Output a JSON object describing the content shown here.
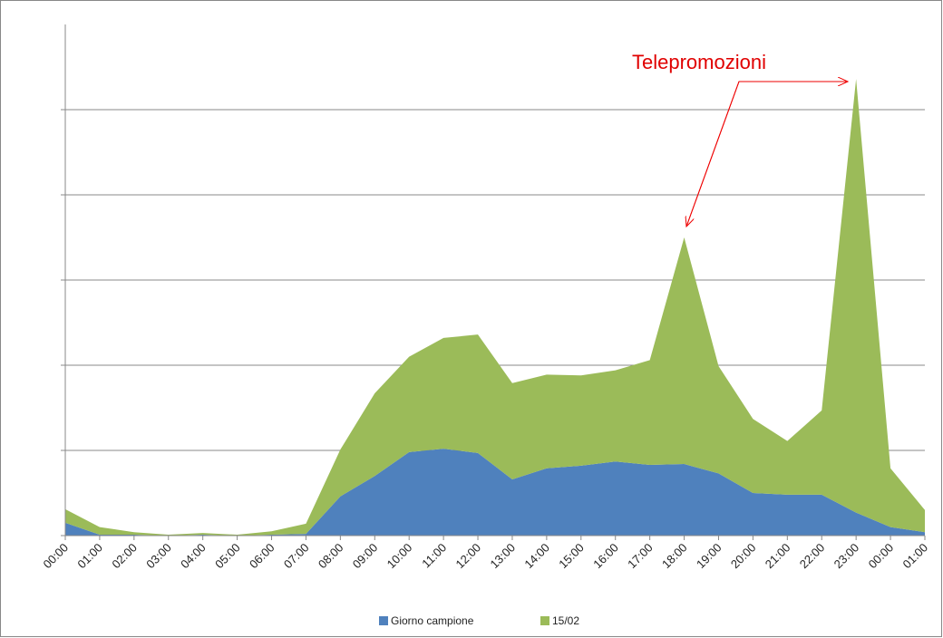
{
  "chart_data": {
    "type": "stacked_area",
    "annotations": [
      "Telepromozioni"
    ],
    "categories": [
      "00:00",
      "01:00",
      "02:00",
      "03:00",
      "04:00",
      "05:00",
      "06:00",
      "07:00",
      "08:00",
      "09:00",
      "10:00",
      "11:00",
      "12:00",
      "13:00",
      "14:00",
      "15:00",
      "16:00",
      "17:00",
      "18:00",
      "19:00",
      "20:00",
      "21:00",
      "22:00",
      "23:00",
      "00:00",
      "01:00"
    ],
    "series": [
      {
        "name": "Giorno campione",
        "color": "#4f81bd",
        "values": [
          0.15,
          0.01,
          0.01,
          0,
          0.01,
          0,
          0.01,
          0.02,
          0.46,
          0.7,
          0.98,
          1.02,
          0.97,
          0.66,
          0.79,
          0.82,
          0.87,
          0.83,
          0.84,
          0.73,
          0.5,
          0.48,
          0.48,
          0.27,
          0.1,
          0.04
        ]
      },
      {
        "name": "15/02",
        "color": "#9bbb59",
        "values": [
          0.16,
          0.09,
          0.03,
          0.01,
          0.02,
          0.01,
          0.04,
          0.12,
          0.55,
          0.97,
          1.12,
          1.3,
          1.39,
          1.13,
          1.1,
          1.06,
          1.07,
          1.23,
          2.66,
          1.26,
          0.87,
          0.63,
          0.99,
          5.09,
          0.69,
          0.26
        ]
      }
    ],
    "ylim": [
      0,
      6
    ],
    "yticks": [
      0,
      1,
      2,
      3,
      4,
      5
    ],
    "grid": true
  }
}
